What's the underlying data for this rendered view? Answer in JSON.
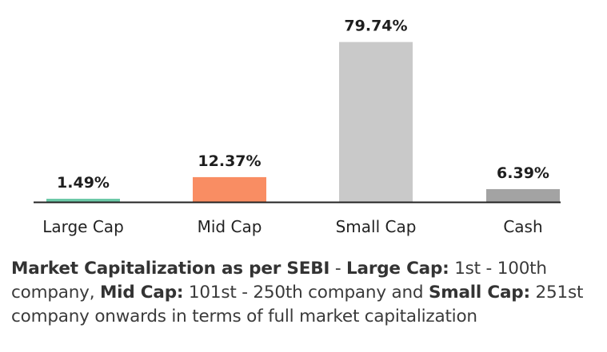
{
  "chart_data": {
    "type": "bar",
    "categories": [
      "Large Cap",
      "Mid Cap",
      "Small Cap",
      "Cash"
    ],
    "values": [
      1.49,
      12.37,
      79.74,
      6.39
    ],
    "data_labels": [
      "1.49%",
      "12.37%",
      "79.74%",
      "6.39%"
    ],
    "colors": [
      "#6cc9a8",
      "#f98d63",
      "#c9c9c9",
      "#a3a3a3"
    ],
    "ylim": [
      0,
      80
    ],
    "grid": false,
    "legend": "none"
  },
  "note": {
    "t1": "Market Capitalization as per SEBI",
    "t2": " - ",
    "t3": "Large Cap:",
    "t4": " 1st - 100th company, ",
    "t5": "Mid Cap:",
    "t6": " 101st - 250th company and ",
    "t7": "Small Cap:",
    "t8": " 251st company onwards in terms of full market capitalization"
  }
}
